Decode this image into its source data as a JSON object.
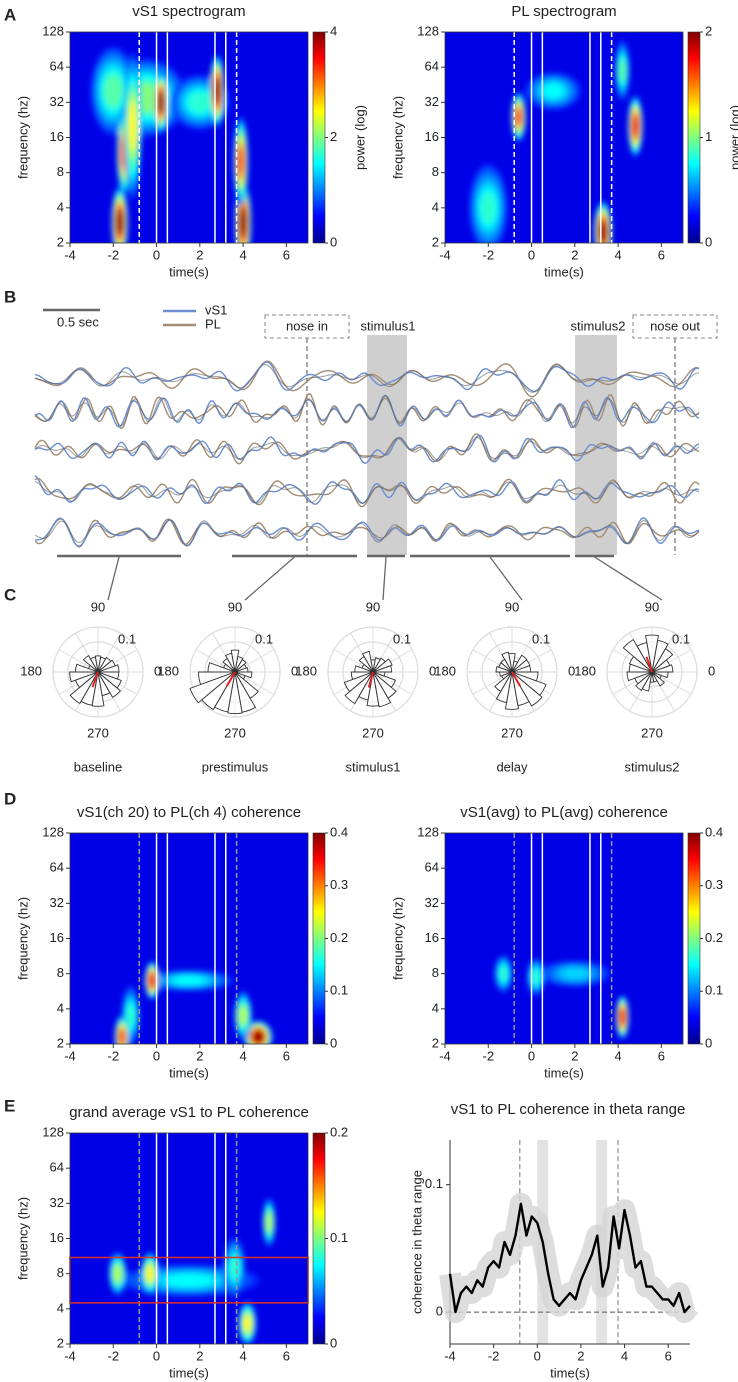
{
  "panel_labels": [
    "A",
    "B",
    "C",
    "D",
    "E"
  ],
  "spectrogram_axes": {
    "xlabel": "time(s)",
    "ylabel": "frequency (hz)",
    "xlim": [
      -4,
      7
    ],
    "xticks": [
      -4,
      -2,
      0,
      2,
      4,
      6
    ],
    "ylim": [
      2,
      128
    ],
    "yticks": [
      128,
      64,
      32,
      16,
      8,
      4,
      2
    ]
  },
  "spectrograms": [
    {
      "title": "vS1 spectrogram",
      "colorbar_label": "power (log)",
      "clim": [
        0,
        4
      ],
      "cticks": [
        4,
        2,
        0
      ]
    },
    {
      "title": "PL spectrogram",
      "colorbar_label": "power (log)",
      "clim": [
        0,
        2
      ],
      "cticks": [
        2,
        1,
        0
      ]
    },
    {
      "title": "vS1(ch 20) to PL(ch 4) coherence",
      "clim": [
        0,
        0.4
      ],
      "cticks": [
        0.4,
        0.3,
        0.2,
        0.1,
        0
      ]
    },
    {
      "title": "vS1(avg) to PL(avg) coherence",
      "clim": [
        0,
        0.4
      ],
      "cticks": [
        0.4,
        0.3,
        0.2,
        0.1,
        0
      ]
    },
    {
      "title": "grand average vS1 to PL coherence",
      "clim": [
        0,
        0.2
      ],
      "cticks": [
        0.2,
        0.1,
        0
      ]
    }
  ],
  "traces": {
    "scale_bar": "0.5 sec",
    "legend": [
      {
        "name": "vS1",
        "color": "#6b8fd0"
      },
      {
        "name": "PL",
        "color": "#a38d74"
      }
    ],
    "events": [
      "nose in",
      "stimulus1",
      "stimulus2",
      "nose out"
    ]
  },
  "phase": {
    "angle_labels": [
      90,
      180,
      0,
      270
    ],
    "radius_label": "0.1",
    "epochs": [
      "baseline",
      "prestimulus",
      "stimulus1",
      "delay",
      "stimulus2"
    ]
  },
  "theta": {
    "type": "line",
    "title": "vS1 to PL coherence in theta range",
    "xlabel": "time(s)",
    "ylabel": "coherence in theta range",
    "xlim": [
      -4,
      7
    ],
    "xticks": [
      -4,
      -2,
      0,
      2,
      4,
      6
    ],
    "ylim": [
      -0.025,
      0.135
    ],
    "yticks": [
      0,
      0.1
    ],
    "color": "#000000",
    "x": [
      -4,
      -3.75,
      -3.5,
      -3.25,
      -3,
      -2.75,
      -2.5,
      -2.25,
      -2,
      -1.75,
      -1.5,
      -1.25,
      -1,
      -0.75,
      -0.5,
      -0.25,
      0,
      0.25,
      0.5,
      0.75,
      1,
      1.25,
      1.5,
      1.75,
      2,
      2.25,
      2.5,
      2.75,
      3,
      3.25,
      3.5,
      3.75,
      4,
      4.25,
      4.5,
      4.75,
      5,
      5.25,
      5.5,
      5.75,
      6,
      6.25,
      6.5,
      6.75,
      7
    ],
    "values": [
      0.03,
      0.0,
      0.015,
      0.02,
      0.015,
      0.025,
      0.02,
      0.035,
      0.04,
      0.035,
      0.055,
      0.045,
      0.06,
      0.085,
      0.06,
      0.075,
      0.07,
      0.055,
      0.03,
      0.01,
      0.005,
      0.01,
      0.015,
      0.01,
      0.025,
      0.035,
      0.045,
      0.06,
      0.02,
      0.035,
      0.075,
      0.05,
      0.08,
      0.06,
      0.035,
      0.04,
      0.02,
      0.02,
      0.015,
      0.01,
      0.01,
      0.005,
      0.015,
      0.0,
      0.005
    ]
  }
}
